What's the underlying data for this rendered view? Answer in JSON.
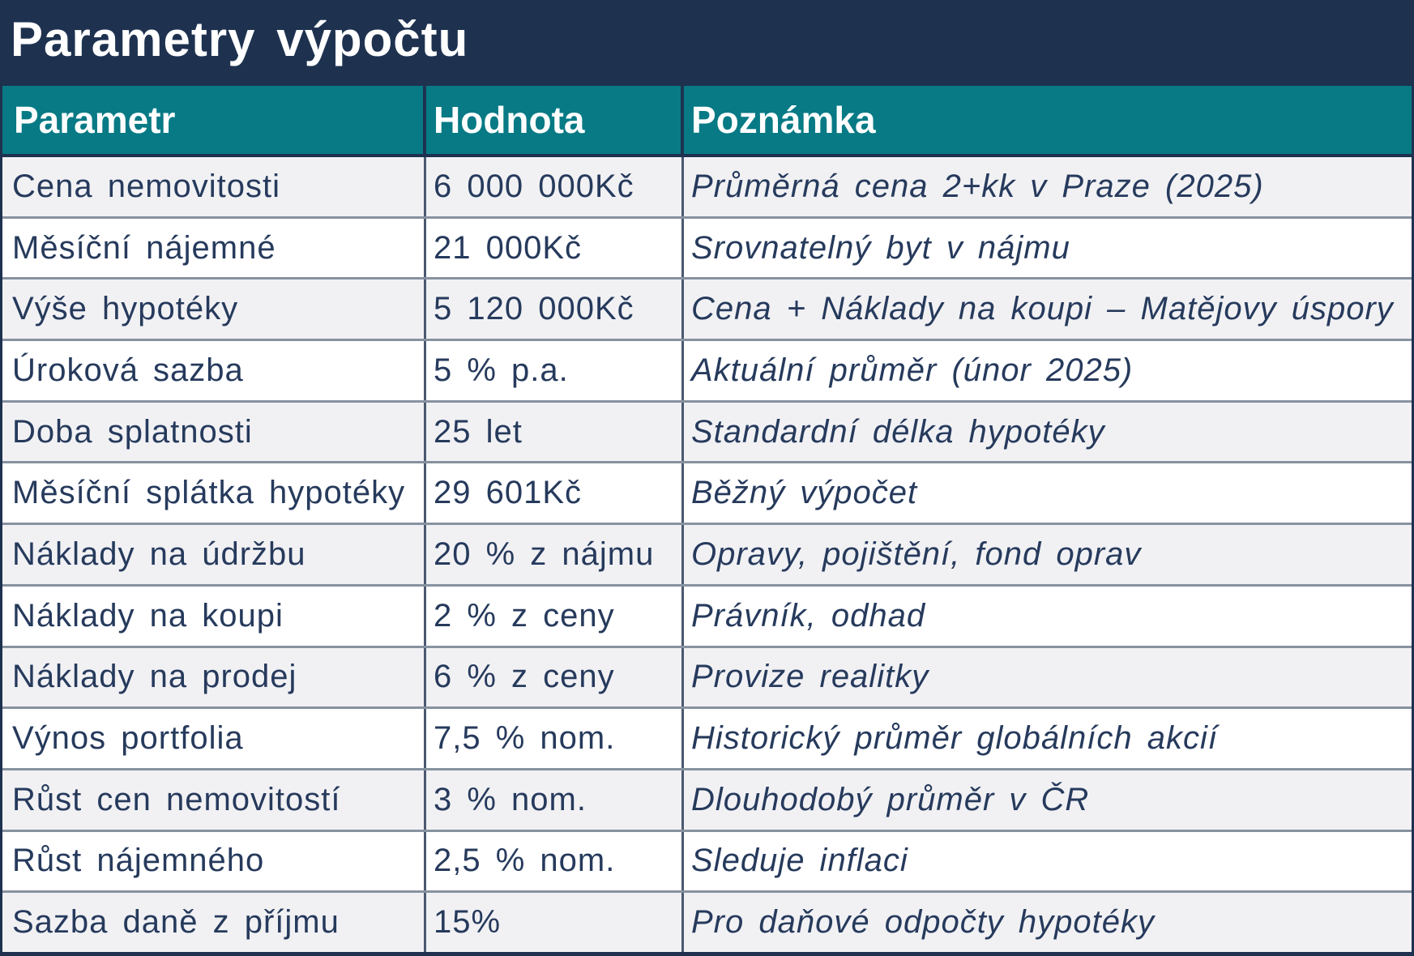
{
  "title": "Parametry výpočtu",
  "colors": {
    "title_bar": "#1e3250",
    "header_bg": "#077a85",
    "row_alt_bg": "#f1f1f4",
    "row_bg": "#ffffff",
    "row_line": "#8792a0",
    "column_line": "#4b5870",
    "text": "#263a5c"
  },
  "table": {
    "columns": [
      "Parametr",
      "Hodnota",
      "Poznámka"
    ],
    "rows": [
      {
        "parametr": "Cena nemovitosti",
        "hodnota": "6 000 000Kč",
        "poznamka": "Průměrná cena 2+kk v Praze (2025)"
      },
      {
        "parametr": "Měsíční nájemné",
        "hodnota": "21 000Kč",
        "poznamka": "Srovnatelný byt v nájmu"
      },
      {
        "parametr": "Výše hypotéky",
        "hodnota": "5 120 000Kč",
        "poznamka": "Cena + Náklady na koupi – Matějovy úspory"
      },
      {
        "parametr": "Úroková sazba",
        "hodnota": "5 % p.a.",
        "poznamka": "Aktuální průměr (únor 2025)"
      },
      {
        "parametr": "Doba splatnosti",
        "hodnota": "25 let",
        "poznamka": "Standardní délka hypotéky"
      },
      {
        "parametr": "Měsíční splátka hypotéky",
        "hodnota": "29 601Kč",
        "poznamka": "Běžný výpočet"
      },
      {
        "parametr": "Náklady na údržbu",
        "hodnota": "20 % z nájmu",
        "poznamka": "Opravy, pojištění, fond oprav"
      },
      {
        "parametr": "Náklady na koupi",
        "hodnota": "2 % z ceny",
        "poznamka": "Právník, odhad"
      },
      {
        "parametr": "Náklady na prodej",
        "hodnota": "6 % z ceny",
        "poznamka": "Provize realitky"
      },
      {
        "parametr": "Výnos portfolia",
        "hodnota": "7,5 % nom.",
        "poznamka": "Historický průměr globálních akcií"
      },
      {
        "parametr": "Růst cen nemovitostí",
        "hodnota": "3 % nom.",
        "poznamka": "Dlouhodobý průměr v ČR"
      },
      {
        "parametr": "Růst nájemného",
        "hodnota": "2,5 % nom.",
        "poznamka": "Sleduje inflaci"
      },
      {
        "parametr": "Sazba daně z příjmu",
        "hodnota": "15%",
        "poznamka": "Pro daňové odpočty hypotéky"
      }
    ]
  }
}
